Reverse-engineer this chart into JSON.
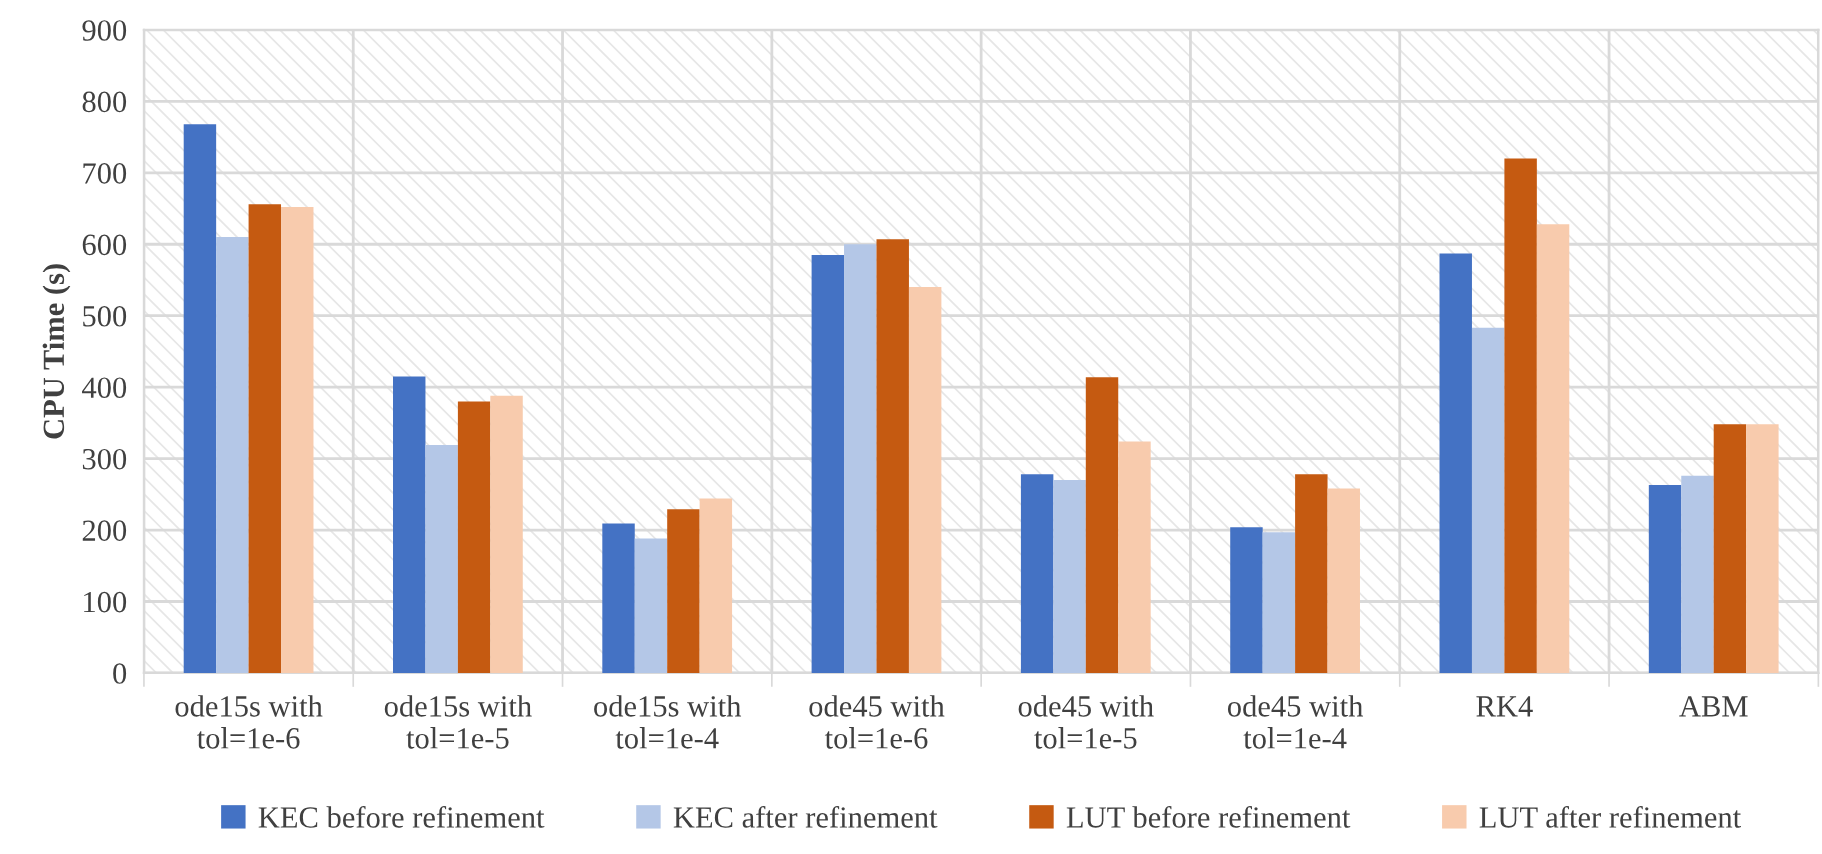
{
  "chart_data": {
    "type": "bar",
    "ylabel": "CPU Time (s)",
    "categories": [
      "ode15s with\ntol=1e-6",
      "ode15s with\ntol=1e-5",
      "ode15s with\ntol=1e-4",
      "ode45 with\ntol=1e-6",
      "ode45 with\ntol=1e-5",
      "ode45 with\ntol=1e-4",
      "RK4",
      "ABM"
    ],
    "series": [
      {
        "name": "KEC before refinement",
        "color": "#4472c4",
        "values": [
          768,
          415,
          209,
          585,
          278,
          204,
          587,
          263
        ]
      },
      {
        "name": "KEC after refinement",
        "color": "#b4c7e7",
        "values": [
          610,
          319,
          188,
          600,
          270,
          197,
          483,
          276
        ]
      },
      {
        "name": "LUT before refinement",
        "color": "#c55a11",
        "values": [
          656,
          380,
          229,
          607,
          414,
          278,
          720,
          348
        ]
      },
      {
        "name": "LUT after refinement",
        "color": "#f8cbad",
        "values": [
          652,
          388,
          244,
          540,
          324,
          258,
          628,
          348
        ]
      }
    ],
    "ylim": [
      0,
      900
    ],
    "yticks": [
      0,
      100,
      200,
      300,
      400,
      500,
      600,
      700,
      800,
      900
    ],
    "grid": true,
    "legend": "bottom"
  }
}
